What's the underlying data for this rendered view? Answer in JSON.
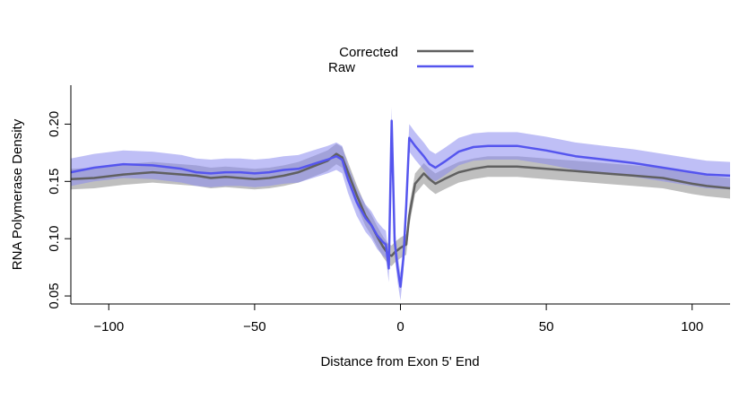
{
  "chart_data": {
    "type": "line",
    "title": "",
    "xlabel": "Distance from Exon 5' End",
    "ylabel": "RNA Polymerase Density",
    "xlim": [
      -113,
      113
    ],
    "ylim": [
      0.043,
      0.234
    ],
    "xticks": [
      -100,
      -50,
      0,
      50,
      100
    ],
    "xtick_labels": [
      "−100",
      "−50",
      "0",
      "50",
      "100"
    ],
    "yticks": [
      0.05,
      0.1,
      0.15,
      0.2
    ],
    "ytick_labels": [
      "0.05",
      "0.10",
      "0.15",
      "0.20"
    ],
    "grid": false,
    "legend_position": "top-center",
    "series": [
      {
        "name": "Corrected",
        "color": "#606060",
        "band_color": "#b4b4b4",
        "x": [
          -113,
          -105,
          -95,
          -85,
          -75,
          -70,
          -65,
          -60,
          -55,
          -50,
          -45,
          -40,
          -35,
          -30,
          -25,
          -22,
          -20,
          -18,
          -15,
          -12,
          -10,
          -8,
          -6,
          -4,
          -3,
          -2,
          -1,
          0,
          2,
          3,
          5,
          8,
          10,
          12,
          15,
          20,
          25,
          30,
          40,
          50,
          60,
          70,
          80,
          90,
          100,
          105,
          113
        ],
        "values": [
          0.152,
          0.153,
          0.156,
          0.158,
          0.156,
          0.155,
          0.153,
          0.154,
          0.153,
          0.152,
          0.153,
          0.155,
          0.158,
          0.163,
          0.168,
          0.174,
          0.171,
          0.158,
          0.138,
          0.12,
          0.112,
          0.102,
          0.093,
          0.086,
          0.085,
          0.088,
          0.09,
          0.092,
          0.095,
          0.12,
          0.148,
          0.157,
          0.152,
          0.148,
          0.152,
          0.158,
          0.161,
          0.163,
          0.163,
          0.161,
          0.159,
          0.157,
          0.155,
          0.153,
          0.148,
          0.146,
          0.144
        ],
        "band_halfwidth": 0.009
      },
      {
        "name": "Raw",
        "color": "#5555ee",
        "band_color": "#8a8aee",
        "x": [
          -113,
          -105,
          -95,
          -85,
          -75,
          -70,
          -65,
          -60,
          -55,
          -50,
          -45,
          -40,
          -35,
          -30,
          -25,
          -22,
          -20,
          -18,
          -15,
          -12,
          -10,
          -8,
          -6,
          -5,
          -4,
          -3,
          -2,
          -1,
          0,
          1,
          2,
          3,
          5,
          8,
          10,
          12,
          15,
          20,
          25,
          30,
          40,
          50,
          60,
          70,
          80,
          90,
          100,
          105,
          113
        ],
        "values": [
          0.158,
          0.162,
          0.165,
          0.164,
          0.161,
          0.158,
          0.157,
          0.158,
          0.158,
          0.157,
          0.158,
          0.16,
          0.161,
          0.165,
          0.169,
          0.172,
          0.169,
          0.152,
          0.132,
          0.118,
          0.112,
          0.103,
          0.097,
          0.095,
          0.074,
          0.203,
          0.098,
          0.075,
          0.058,
          0.083,
          0.13,
          0.188,
          0.181,
          0.172,
          0.165,
          0.162,
          0.167,
          0.176,
          0.18,
          0.181,
          0.181,
          0.177,
          0.172,
          0.169,
          0.166,
          0.162,
          0.158,
          0.156,
          0.155
        ],
        "band_halfwidth": 0.012
      }
    ]
  }
}
